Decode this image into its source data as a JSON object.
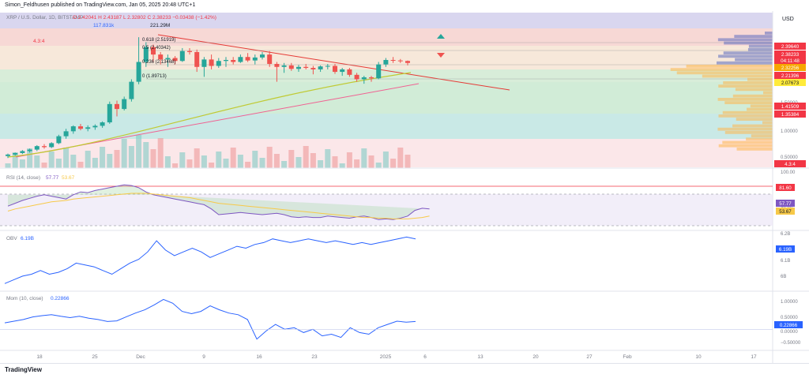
{
  "header": {
    "published": "Simon_Feldhusen published on TradingView.com, Jan 05, 2025 20:48 UTC+1"
  },
  "footer": {
    "brand": "TradingView"
  },
  "chart_data": [
    {
      "type": "candlestick",
      "pane": "price",
      "symbol_legend": "XRP / U.S. Dollar, 1D, BITSTAMP",
      "ohlc_text": {
        "o": "2.42041",
        "h": "2.43187",
        "l": "2.32802",
        "c": "2.38233",
        "chg": "−0.03438 (−1.42%)"
      },
      "currency": "USD",
      "candles": [
        [
          0.5,
          0.55,
          0.46,
          0.53
        ],
        [
          0.53,
          0.57,
          0.51,
          0.56
        ],
        [
          0.56,
          0.62,
          0.54,
          0.6
        ],
        [
          0.6,
          0.65,
          0.57,
          0.63
        ],
        [
          0.63,
          0.72,
          0.6,
          0.7
        ],
        [
          0.7,
          0.74,
          0.65,
          0.68
        ],
        [
          0.68,
          0.78,
          0.66,
          0.76
        ],
        [
          0.76,
          0.93,
          0.74,
          0.9
        ],
        [
          0.9,
          1.05,
          0.85,
          1.0
        ],
        [
          1.0,
          1.12,
          0.95,
          1.1
        ],
        [
          1.1,
          1.15,
          1.02,
          1.05
        ],
        [
          1.05,
          1.12,
          1.0,
          1.08
        ],
        [
          1.08,
          1.14,
          1.03,
          1.11
        ],
        [
          1.11,
          1.2,
          1.07,
          1.18
        ],
        [
          1.18,
          1.6,
          1.15,
          1.55
        ],
        [
          1.55,
          1.62,
          1.3,
          1.45
        ],
        [
          1.45,
          1.7,
          1.42,
          1.65
        ],
        [
          1.65,
          2.05,
          1.6,
          2.0
        ],
        [
          2.0,
          2.9,
          1.95,
          2.4
        ],
        [
          2.4,
          2.8,
          2.3,
          2.7
        ],
        [
          2.7,
          2.75,
          2.4,
          2.55
        ],
        [
          2.55,
          2.6,
          2.35,
          2.45
        ],
        [
          2.45,
          2.55,
          2.3,
          2.48
        ],
        [
          2.48,
          2.52,
          2.35,
          2.42
        ],
        [
          2.42,
          2.68,
          2.4,
          2.62
        ],
        [
          2.62,
          2.68,
          2.55,
          2.6
        ],
        [
          2.6,
          2.65,
          2.2,
          2.3
        ],
        [
          2.3,
          2.5,
          2.1,
          2.45
        ],
        [
          2.45,
          2.55,
          2.25,
          2.32
        ],
        [
          2.32,
          2.48,
          2.28,
          2.42
        ],
        [
          2.42,
          2.5,
          2.3,
          2.44
        ],
        [
          2.44,
          2.5,
          2.35,
          2.4
        ],
        [
          2.4,
          2.55,
          2.38,
          2.5
        ],
        [
          2.5,
          2.58,
          2.4,
          2.43
        ],
        [
          2.43,
          2.55,
          2.35,
          2.49
        ],
        [
          2.49,
          2.6,
          2.45,
          2.55
        ],
        [
          2.55,
          2.62,
          2.3,
          2.36
        ],
        [
          2.36,
          2.4,
          2.0,
          2.3
        ],
        [
          2.3,
          2.38,
          2.18,
          2.33
        ],
        [
          2.33,
          2.38,
          2.22,
          2.26
        ],
        [
          2.26,
          2.34,
          2.2,
          2.3
        ],
        [
          2.3,
          2.36,
          2.25,
          2.28
        ],
        [
          2.28,
          2.32,
          2.15,
          2.25
        ],
        [
          2.25,
          2.33,
          2.2,
          2.31
        ],
        [
          2.31,
          2.36,
          2.25,
          2.32
        ],
        [
          2.32,
          2.36,
          2.16,
          2.2
        ],
        [
          2.2,
          2.28,
          2.12,
          2.25
        ],
        [
          2.25,
          2.28,
          2.1,
          2.14
        ],
        [
          2.14,
          2.18,
          2.0,
          2.05
        ],
        [
          2.05,
          2.12,
          1.96,
          2.09
        ],
        [
          2.09,
          2.12,
          2.0,
          2.07
        ],
        [
          2.07,
          2.4,
          2.05,
          2.35
        ],
        [
          2.35,
          2.48,
          2.3,
          2.44
        ],
        [
          2.44,
          2.5,
          2.38,
          2.43
        ],
        [
          2.43,
          2.46,
          2.38,
          2.42
        ],
        [
          2.42,
          2.43,
          2.33,
          2.38
        ]
      ],
      "y_ticks": [
        "1.50000",
        "1.00000",
        "0.50000"
      ],
      "price_badges": [
        {
          "label": "2.39640",
          "color": "#f23645"
        },
        {
          "label": "2.38233",
          "color": "#f23645"
        },
        {
          "label": "04:11:48",
          "color": "#f23645"
        },
        {
          "label": "2.32256",
          "color": "#f7a600"
        },
        {
          "label": "2.21396",
          "color": "#f23645"
        },
        {
          "label": "2.07673",
          "color": "#ffeb3b"
        },
        {
          "label": "1.41509",
          "color": "#f23645"
        },
        {
          "label": "1.35384",
          "color": "#f23645"
        },
        {
          "label": "4.3:4",
          "color": "#f23645"
        }
      ],
      "fib_levels": [
        {
          "label": "0.618 (2.51919)"
        },
        {
          "label": "0.5 (2.40342)"
        },
        {
          "label": "0.236 (2.13468)"
        },
        {
          "label": "0 (1.89713)"
        }
      ],
      "annotations": [
        "4.3:4",
        "117.831k",
        "221.29M"
      ],
      "colors": {
        "up": "#26a69a",
        "down": "#ef5350"
      }
    },
    {
      "type": "line",
      "pane": "rsi",
      "legend": "RSI (14, close)",
      "values_text": [
        "57.77",
        "53.67"
      ],
      "y_ticks": [
        "100.00",
        "40.00"
      ],
      "series": [
        {
          "name": "RSI",
          "color": "#7e57c2",
          "values": [
            52,
            56,
            60,
            63,
            66,
            68,
            66,
            64,
            62,
            68,
            72,
            71,
            74,
            76,
            78,
            80,
            82,
            81,
            78,
            72,
            68,
            66,
            64,
            62,
            60,
            58,
            56,
            54,
            48,
            40,
            41,
            42,
            43,
            42,
            41,
            40,
            41,
            42,
            40,
            37,
            36,
            37,
            36,
            36,
            38,
            37,
            36,
            35,
            37,
            38,
            36,
            33,
            34,
            33,
            35,
            38,
            46,
            49,
            48
          ]
        },
        {
          "name": "MA",
          "color": "#f7c948",
          "values": [
            45,
            48,
            50,
            52,
            54,
            56,
            58,
            59,
            60,
            62,
            63,
            64,
            65,
            66,
            67,
            68,
            69,
            70,
            70,
            70,
            69,
            68,
            67,
            66,
            65,
            64,
            62,
            60,
            58,
            56,
            55,
            54,
            53,
            52,
            51,
            50,
            49,
            48,
            47,
            46,
            45,
            44,
            43,
            42,
            41,
            40,
            39,
            38,
            37,
            36,
            36,
            35,
            35,
            34,
            34,
            34,
            35,
            36,
            38
          ]
        }
      ],
      "badges": [
        {
          "label": "81.60",
          "color": "#f23645"
        },
        {
          "label": "57.77",
          "color": "#7e57c2"
        },
        {
          "label": "53.67",
          "color": "#f7c948"
        }
      ]
    },
    {
      "type": "line",
      "pane": "obv",
      "legend": "OBV",
      "value_text": "6.19B",
      "y_ticks": [
        "6.2B",
        "6.1B",
        "6B"
      ],
      "series": [
        {
          "name": "OBV",
          "color": "#2962ff",
          "values": [
            5.95,
            5.97,
            5.99,
            6.0,
            6.02,
            6.0,
            6.01,
            6.03,
            6.06,
            6.05,
            6.04,
            6.02,
            6.0,
            6.03,
            6.06,
            6.08,
            6.12,
            6.18,
            6.13,
            6.1,
            6.12,
            6.14,
            6.12,
            6.09,
            6.11,
            6.13,
            6.15,
            6.14,
            6.16,
            6.17,
            6.19,
            6.18,
            6.17,
            6.18,
            6.19,
            6.18,
            6.17,
            6.18,
            6.17,
            6.16,
            6.17,
            6.16,
            6.17,
            6.18,
            6.19,
            6.2,
            6.19
          ]
        }
      ],
      "badges": [
        {
          "label": "6.19B",
          "color": "#2962ff"
        }
      ]
    },
    {
      "type": "line",
      "pane": "momentum",
      "legend": "Mom (10, close)",
      "value_text": "0.22866",
      "y_ticks": [
        "1.00000",
        "0.50000",
        "0.00000",
        "−0.50000"
      ],
      "series": [
        {
          "name": "Mom",
          "color": "#2962ff",
          "values": [
            0.2,
            0.25,
            0.3,
            0.38,
            0.42,
            0.45,
            0.4,
            0.36,
            0.4,
            0.34,
            0.3,
            0.24,
            0.26,
            0.38,
            0.5,
            0.6,
            0.75,
            0.92,
            0.8,
            0.55,
            0.48,
            0.55,
            0.72,
            0.6,
            0.5,
            0.45,
            0.3,
            -0.3,
            -0.05,
            0.15,
            0.0,
            0.05,
            -0.1,
            0.0,
            -0.2,
            -0.15,
            -0.25,
            0.05,
            -0.1,
            -0.15,
            0.05,
            0.15,
            0.25,
            0.22,
            0.24
          ]
        }
      ],
      "badges": [
        {
          "label": "0.22866",
          "color": "#2962ff"
        }
      ]
    }
  ],
  "time_axis": [
    "18",
    "25",
    "Dec",
    "9",
    "16",
    "23",
    "2025",
    "6",
    "13",
    "20",
    "27",
    "Feb",
    "10",
    "17"
  ]
}
